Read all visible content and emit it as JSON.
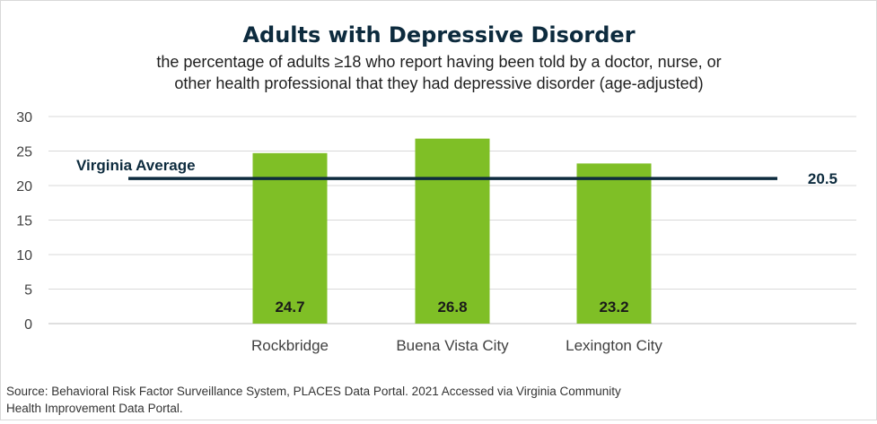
{
  "chart_data": {
    "type": "bar",
    "title": "Adults with Depressive Disorder",
    "subtitle_lines": [
      "the percentage of adults ≥18 who report having been told by a doctor, nurse, or",
      "other health professional that they had depressive disorder (age-adjusted)"
    ],
    "categories": [
      "Rockbridge",
      "Buena Vista City",
      "Lexington City"
    ],
    "values": [
      24.7,
      26.8,
      23.2
    ],
    "data_labels": [
      "24.7",
      "26.8",
      "23.2"
    ],
    "ylim": [
      0,
      30
    ],
    "yticks": [
      "0",
      "5",
      "10",
      "15",
      "20",
      "25",
      "30"
    ],
    "ytick_values": [
      0,
      5,
      10,
      15,
      20,
      25,
      30
    ],
    "grid": true,
    "bar_color": "#7fbf26",
    "reference_line": {
      "label": "Virginia Average",
      "value": 20.5,
      "value_label": "20.5",
      "color": "#0d2b3e"
    },
    "source_lines": [
      "Source:  Behavioral Risk Factor Surveillance System, PLACES Data Portal. 2021 Accessed via Virginia Community",
      "Health Improvement Data Portal."
    ]
  }
}
